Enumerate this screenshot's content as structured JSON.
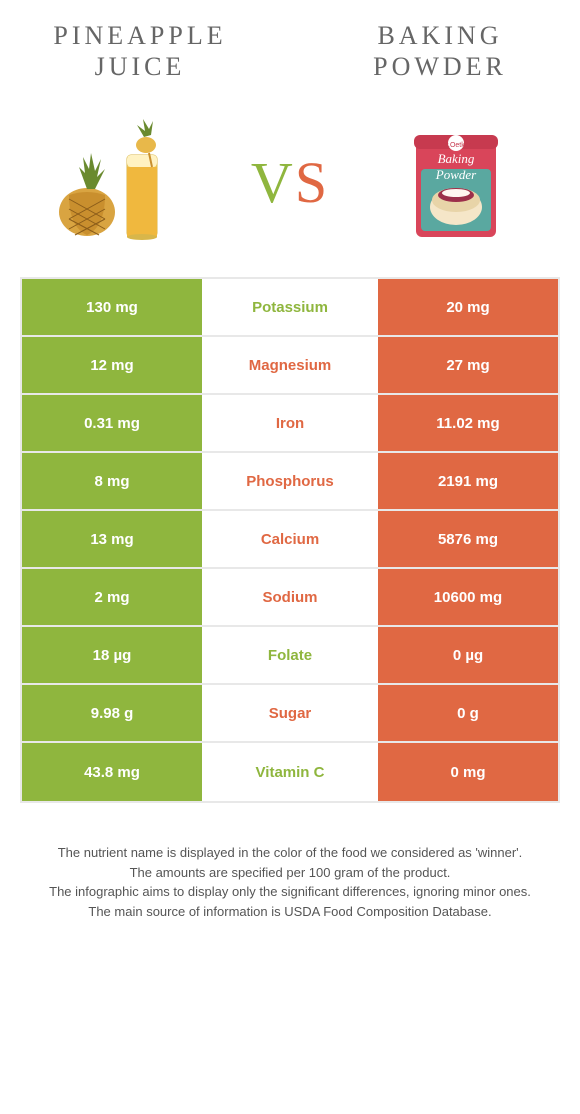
{
  "colors": {
    "left": "#8fb63e",
    "right": "#e06843",
    "nut_green": "#8fb63e",
    "nut_orange": "#e06843"
  },
  "left": {
    "title_line1": "PINEAPPLE",
    "title_line2": "JUICE"
  },
  "right": {
    "title_line1": "BAKING",
    "title_line2": "POWDER"
  },
  "vs": {
    "v": "V",
    "s": "S"
  },
  "rows": [
    {
      "left_val": "130 mg",
      "label": "Potassium",
      "right_val": "20 mg",
      "winner": "left"
    },
    {
      "left_val": "12 mg",
      "label": "Magnesium",
      "right_val": "27 mg",
      "winner": "right"
    },
    {
      "left_val": "0.31 mg",
      "label": "Iron",
      "right_val": "11.02 mg",
      "winner": "right"
    },
    {
      "left_val": "8 mg",
      "label": "Phosphorus",
      "right_val": "2191 mg",
      "winner": "right"
    },
    {
      "left_val": "13 mg",
      "label": "Calcium",
      "right_val": "5876 mg",
      "winner": "right"
    },
    {
      "left_val": "2 mg",
      "label": "Sodium",
      "right_val": "10600 mg",
      "winner": "right"
    },
    {
      "left_val": "18 µg",
      "label": "Folate",
      "right_val": "0 µg",
      "winner": "left"
    },
    {
      "left_val": "9.98 g",
      "label": "Sugar",
      "right_val": "0 g",
      "winner": "right"
    },
    {
      "left_val": "43.8 mg",
      "label": "Vitamin C",
      "right_val": "0 mg",
      "winner": "left"
    }
  ],
  "footnotes": {
    "l1": "The nutrient name is displayed in the color of the food we considered as 'winner'.",
    "l2": "The amounts are specified per 100 gram of the product.",
    "l3": "The infographic aims to display only the significant differences, ignoring minor ones.",
    "l4": "The main source of information is USDA Food Composition Database."
  }
}
